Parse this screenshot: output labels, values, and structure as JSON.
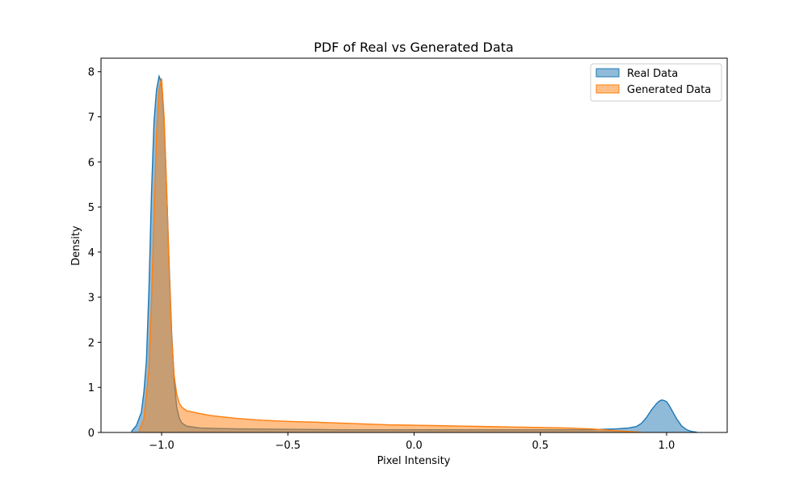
{
  "chart_data": {
    "type": "area",
    "title": "PDF of Real vs Generated Data",
    "xlabel": "Pixel Intensity",
    "ylabel": "Density",
    "xlim": [
      -1.24,
      1.24
    ],
    "ylim": [
      0,
      8.3
    ],
    "x_ticks": [
      -1.0,
      -0.5,
      0.0,
      0.5,
      1.0
    ],
    "x_tick_labels": [
      "−1.0",
      "−0.5",
      "0.0",
      "0.5",
      "1.0"
    ],
    "y_ticks": [
      0,
      1,
      2,
      3,
      4,
      5,
      6,
      7,
      8
    ],
    "y_tick_labels": [
      "0",
      "1",
      "2",
      "3",
      "4",
      "5",
      "6",
      "7",
      "8"
    ],
    "grid": false,
    "legend_position": "top-right",
    "series": [
      {
        "name": "Real Data",
        "color": "#1f77b4",
        "x": [
          -1.12,
          -1.1,
          -1.08,
          -1.07,
          -1.06,
          -1.05,
          -1.04,
          -1.03,
          -1.02,
          -1.01,
          -1.0,
          -0.99,
          -0.98,
          -0.97,
          -0.96,
          -0.95,
          -0.94,
          -0.93,
          -0.92,
          -0.9,
          -0.85,
          -0.8,
          -0.7,
          -0.6,
          -0.5,
          -0.4,
          -0.3,
          -0.2,
          -0.1,
          0.0,
          0.1,
          0.2,
          0.3,
          0.4,
          0.5,
          0.6,
          0.7,
          0.75,
          0.8,
          0.85,
          0.88,
          0.9,
          0.92,
          0.94,
          0.96,
          0.97,
          0.98,
          0.99,
          1.0,
          1.01,
          1.02,
          1.04,
          1.06,
          1.08,
          1.1,
          1.12
        ],
        "y": [
          0.02,
          0.15,
          0.45,
          0.9,
          1.6,
          3.2,
          5.3,
          6.9,
          7.6,
          7.9,
          7.75,
          6.9,
          5.4,
          3.7,
          2.2,
          1.15,
          0.55,
          0.32,
          0.21,
          0.14,
          0.1,
          0.09,
          0.08,
          0.075,
          0.07,
          0.065,
          0.06,
          0.06,
          0.06,
          0.06,
          0.06,
          0.06,
          0.06,
          0.06,
          0.06,
          0.06,
          0.06,
          0.07,
          0.08,
          0.1,
          0.13,
          0.2,
          0.33,
          0.5,
          0.64,
          0.69,
          0.72,
          0.71,
          0.68,
          0.6,
          0.5,
          0.3,
          0.14,
          0.06,
          0.02,
          0.005
        ]
      },
      {
        "name": "Generated Data",
        "color": "#ff7f0e",
        "x": [
          -1.09,
          -1.07,
          -1.05,
          -1.04,
          -1.03,
          -1.02,
          -1.01,
          -1.0,
          -0.99,
          -0.98,
          -0.97,
          -0.96,
          -0.95,
          -0.94,
          -0.93,
          -0.92,
          -0.9,
          -0.85,
          -0.8,
          -0.7,
          -0.6,
          -0.5,
          -0.4,
          -0.3,
          -0.2,
          -0.1,
          0.0,
          0.1,
          0.2,
          0.3,
          0.4,
          0.5,
          0.6,
          0.7,
          0.75,
          0.8,
          0.85,
          0.9
        ],
        "y": [
          0.02,
          0.3,
          1.4,
          2.9,
          4.8,
          6.6,
          7.6,
          7.85,
          7.0,
          5.4,
          3.6,
          2.1,
          1.25,
          0.85,
          0.65,
          0.56,
          0.48,
          0.42,
          0.37,
          0.31,
          0.27,
          0.245,
          0.23,
          0.21,
          0.19,
          0.17,
          0.16,
          0.15,
          0.14,
          0.13,
          0.12,
          0.11,
          0.1,
          0.08,
          0.06,
          0.04,
          0.02,
          0.005
        ]
      }
    ]
  }
}
